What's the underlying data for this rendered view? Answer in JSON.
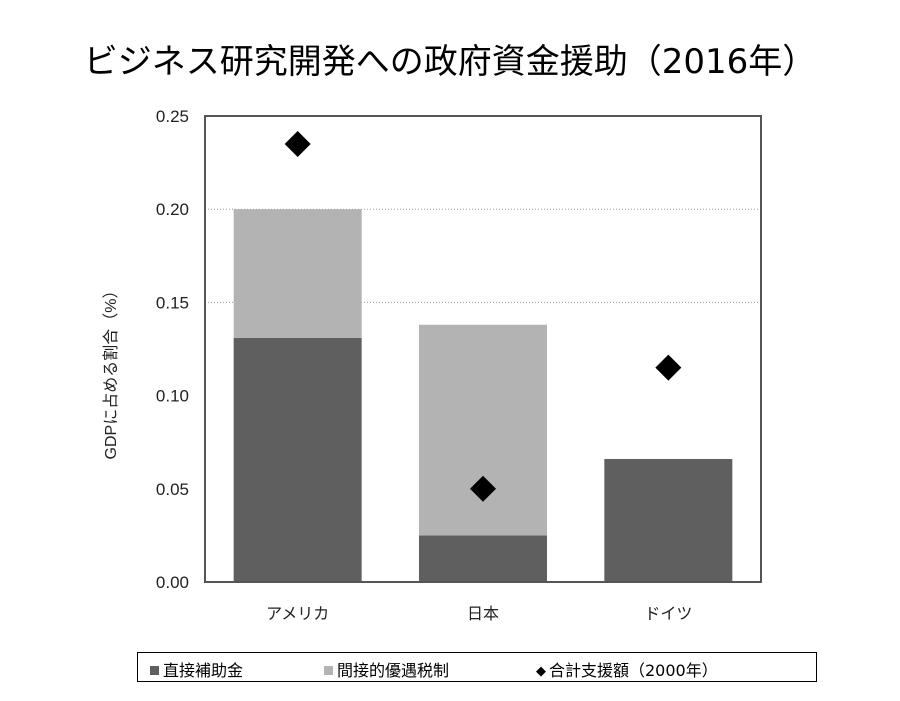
{
  "chart_data": {
    "type": "bar",
    "title": "ビジネス研究開発への政府資金援助（2016年）",
    "ylabel": "GDPに占める割合（%）",
    "xlabel": "",
    "ylim": [
      0,
      0.25
    ],
    "yticks": [
      "0.00",
      "0.05",
      "0.10",
      "0.15",
      "0.20",
      "0.25"
    ],
    "ytick_values": [
      0,
      0.05,
      0.1,
      0.15,
      0.2,
      0.25
    ],
    "categories": [
      "アメリカ",
      "日本",
      "ドイツ"
    ],
    "stacked": true,
    "series": [
      {
        "name": "直接補助金",
        "type": "bar",
        "color": "#5f5f5f",
        "values": [
          0.131,
          0.025,
          0.066
        ]
      },
      {
        "name": "間接的優遇税制",
        "type": "bar",
        "color": "#b3b3b3",
        "values": [
          0.069,
          0.113,
          0.0
        ]
      },
      {
        "name": "合計支援額（2000年）",
        "type": "marker",
        "marker": "diamond",
        "color": "#000000",
        "values": [
          0.235,
          0.05,
          0.115
        ]
      }
    ],
    "grid": "horizontal dotted at 0.20 and 0.15",
    "legend_position": "bottom"
  },
  "legend": {
    "direct": "直接補助金",
    "indirect": "間接的優遇税制",
    "total2000": "合計支援額（2000年）"
  }
}
